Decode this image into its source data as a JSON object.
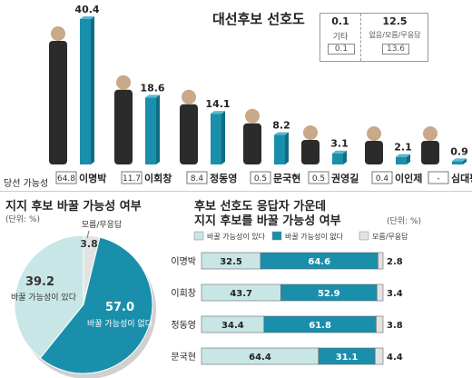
{
  "top": {
    "title": "대선후보 선호도",
    "likelihood_label": "당선 가능성",
    "legend": {
      "others_value": "0.1",
      "others_label": "기타",
      "others_prev": "0.1",
      "undecided_value": "12.5",
      "undecided_label": "없음/모름/무응답",
      "undecided_prev": "13.6"
    }
  },
  "chart_data": [
    {
      "type": "bar",
      "title": "대선후보 선호도",
      "categories": [
        "이명박",
        "이회창",
        "정동영",
        "문국현",
        "권영길",
        "이인제",
        "심대평"
      ],
      "series": [
        {
          "values": [
            40.4,
            18.6,
            14.1,
            8.2,
            3.1,
            2.1,
            0.9
          ]
        }
      ],
      "likelihood_labels": [
        "64.8",
        "11.7",
        "8.4",
        "0.5",
        "0.5",
        "0.4",
        "-"
      ],
      "value_labels": [
        "40.4",
        "18.6",
        "14.1",
        "8.2",
        "3.1",
        "2.1",
        "0.9"
      ],
      "ylim": [
        0,
        40.4
      ],
      "legend": "top-right"
    },
    {
      "type": "pie",
      "title": "지지 후보 바꿀 가능성 여부",
      "unit": "(단위: %)",
      "categories": [
        "바꿀 가능성이 없다",
        "바꿀 가능성이 있다",
        "모름/무응답"
      ],
      "values": [
        57.0,
        39.2,
        3.8
      ],
      "value_labels": [
        "57.0",
        "39.2",
        "3.8"
      ],
      "slice_labels": [
        "바꿀 가능성이 없다",
        "바꿀 가능성이 있다",
        "모름/무응답"
      ],
      "colors": [
        "#1a8fab",
        "#c9e6e6",
        "#e3e3e3"
      ]
    },
    {
      "type": "bar",
      "orientation": "horizontal-stacked",
      "title_lines": [
        "후보 선호도 응답자 가운데",
        "지지 후보를 바꿀 가능성 여부"
      ],
      "unit": "(단위: %)",
      "categories": [
        "이명박",
        "이회창",
        "정동영",
        "문국현"
      ],
      "series": [
        {
          "name": "바꿀 가능성이 있다",
          "values": [
            32.5,
            43.7,
            34.4,
            64.4
          ],
          "labels": [
            "32.5",
            "43.7",
            "34.4",
            "64.4"
          ],
          "color": "#c9e6e6"
        },
        {
          "name": "바꿀 가능성이 없다",
          "values": [
            64.6,
            52.9,
            61.8,
            31.1
          ],
          "labels": [
            "64.6",
            "52.9",
            "61.8",
            "31.1"
          ],
          "color": "#1a8fab"
        },
        {
          "name": "모름/무응답",
          "values": [
            2.8,
            3.4,
            3.8,
            4.4
          ],
          "labels": [
            "2.8",
            "3.4",
            "3.8",
            "4.4"
          ],
          "color": "#e3e3e3"
        }
      ],
      "legend": "top"
    }
  ]
}
